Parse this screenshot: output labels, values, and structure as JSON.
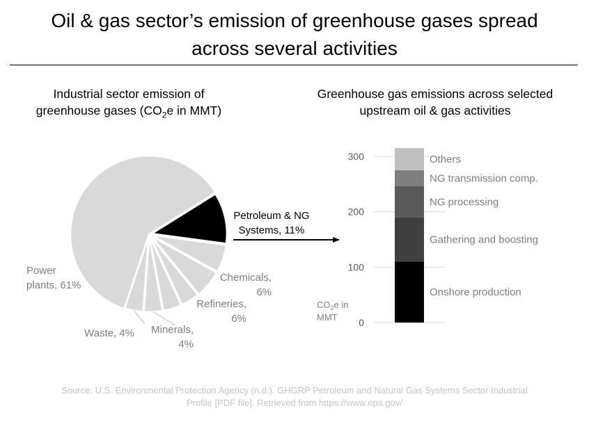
{
  "title_line1": "Oil & gas sector’s emission of greenhouse gases spread",
  "title_line2": "across several activities",
  "pie_chart": {
    "subtitle_line1": "Industrial sector emission of",
    "subtitle_line2_pre": "greenhouse gases (CO",
    "subtitle_line2_sub": "2",
    "subtitle_line2_post": "e in MMT)"
  },
  "bar_chart": {
    "subtitle_line1": "Greenhouse gas emissions across selected",
    "subtitle_line2": "upstream oil & gas activities",
    "unit_line1_pre": "CO",
    "unit_line1_sub": "2",
    "unit_line1_post": "e in",
    "unit_line2": "MMT"
  },
  "chart_data": [
    {
      "type": "pie",
      "slices": [
        {
          "label_lines": [
            "Power",
            "plants, 61%"
          ],
          "value": 61,
          "color": "#d9d9d9"
        },
        {
          "label_lines": [
            "Petroleum & NG",
            "Systems, 11%"
          ],
          "value": 11,
          "color": "#000000"
        },
        {
          "label_lines": [
            "Chemicals,",
            "6%"
          ],
          "value": 6,
          "color": "#d9d9d9"
        },
        {
          "label_lines": [
            "Refineries,",
            "6%"
          ],
          "value": 6,
          "color": "#d9d9d9"
        },
        {
          "label_lines": [],
          "value": 4,
          "color": "#d9d9d9"
        },
        {
          "label_lines": [],
          "value": 4,
          "color": "#d9d9d9"
        },
        {
          "label_lines": [
            "Minerals,",
            "4%"
          ],
          "value": 4,
          "color": "#d9d9d9"
        },
        {
          "label_lines": [
            "Waste, 4%"
          ],
          "value": 4,
          "color": "#d9d9d9"
        }
      ]
    },
    {
      "type": "bar",
      "stacked": true,
      "ylim": [
        0,
        315
      ],
      "yticks": [
        0,
        100,
        200,
        300
      ],
      "grid": true,
      "series": [
        {
          "name": "Onshore production",
          "value": 110,
          "color": "#000000"
        },
        {
          "name": "Gathering and boosting",
          "value": 80,
          "color": "#404040"
        },
        {
          "name": "NG processing",
          "value": 56,
          "color": "#595959"
        },
        {
          "name": "NG transmission comp.",
          "value": 29,
          "color": "#7f7f7f"
        },
        {
          "name": "Others",
          "value": 40,
          "color": "#bfbfbf"
        }
      ]
    }
  ],
  "source_line1": "Source: U.S. Environmental Protection Agency (n.d.). GHGRP Petroleum and Natural Gas Systems Sector Industrial",
  "source_line2": "Profile [PDF file]. Retrieved from https://www.epa.gov/"
}
